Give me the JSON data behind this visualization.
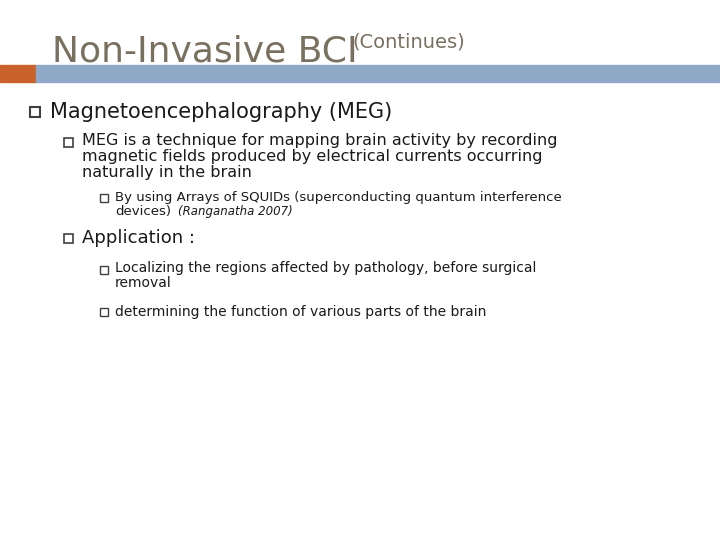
{
  "title_main": "Non-Invasive BCI",
  "title_sub": "(Continues)",
  "title_main_color": "#7a7060",
  "title_sub_color": "#7a7060",
  "bar_left_color": "#c8622a",
  "bar_right_color": "#8fa8c8",
  "background_color": "#ffffff",
  "bullet_color": "#404040",
  "text_color": "#1a1a1a",
  "level1_bullet": "Magnetoencephalography (MEG)",
  "level2_bullet1_lines": [
    "MEG is a technique for mapping brain activity by recording",
    "magnetic fields produced by electrical currents occurring",
    "naturally in the brain"
  ],
  "level3_line1": "By using Arrays of SQUIDs (superconducting quantum interference",
  "level3_line2a": "devices)",
  "level3_line2b": "(Ranganatha 2007)",
  "level2_bullet2": "Application :",
  "level3_bullet2_line1": "Localizing the regions affected by pathology, before surgical",
  "level3_bullet2_line2": "removal",
  "level3_bullet3": "determining the function of various parts of the brain"
}
